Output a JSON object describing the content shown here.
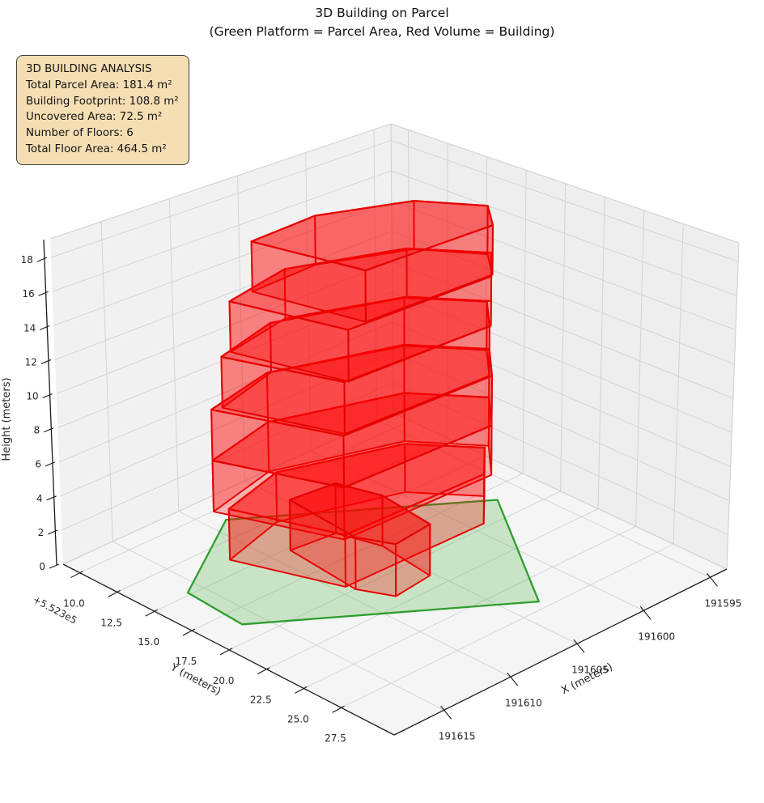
{
  "title": {
    "line1": "3D Building on Parcel",
    "line2": "(Green Platform = Parcel Area, Red Volume = Building)"
  },
  "info_box": {
    "lines": [
      "3D BUILDING ANALYSIS",
      "Total Parcel Area: 181.4 m²",
      "Building Footprint: 108.8 m²",
      "Uncovered Area: 72.5 m²",
      "Number of Floors: 6",
      "Total Floor Area: 464.5 m²"
    ]
  },
  "axes": {
    "x": {
      "label": "X (meters)",
      "ticks": [
        "191615",
        "191610",
        "191605",
        "191600",
        "191595"
      ]
    },
    "y": {
      "label": "Y (meters)",
      "offset_text": "+5.523e5",
      "ticks": [
        "10.0",
        "12.5",
        "15.0",
        "17.5",
        "20.0",
        "22.5",
        "25.0",
        "27.5"
      ]
    },
    "z": {
      "label": "Height (meters)",
      "ticks": [
        "0",
        "2",
        "4",
        "6",
        "8",
        "10",
        "12",
        "14",
        "16",
        "18"
      ]
    }
  },
  "colors": {
    "pane_left": "#f1f1f1",
    "pane_right": "#eeeeee",
    "pane_floor": "#f5f5f5",
    "grid": "#d3d3d3",
    "pane_edge": "#d0d0d0",
    "spine": "#1a1a1a",
    "tick_text": "#262626",
    "parcel_fill": "rgba(80,180,70,0.27)",
    "parcel_stroke": "#2e9e2e",
    "building_side_fill": "rgba(255,0,0,0.27)",
    "building_top_fill": "rgba(255,0,0,0.42)",
    "building_stroke": "#e60000",
    "info_bg": "#f5deb3"
  },
  "chart_data": {
    "type": "3d-building-plot",
    "title": "3D Building on Parcel",
    "subtitle": "(Green Platform = Parcel Area, Red Volume = Building)",
    "xlabel": "X (meters)",
    "ylabel": "Y (meters)",
    "zlabel": "Height (meters)",
    "x_range": [
      191593.5,
      191618.5
    ],
    "y_range": [
      552308.5,
      552331.0
    ],
    "z_range": [
      0,
      19.1
    ],
    "stats": {
      "total_parcel_area_m2": 181.4,
      "building_footprint_m2": 108.8,
      "uncovered_area_m2": 72.5,
      "number_of_floors": 6,
      "total_floor_area_m2": 464.5,
      "floor_height_m": 3.0,
      "building_top_m": 18.0
    },
    "parcel_polygon": [
      [
        191616.0,
        552314.8
      ],
      [
        191608.8,
        552311.0
      ],
      [
        191596.8,
        552318.5
      ],
      [
        191603.2,
        552326.9
      ],
      [
        191616.3,
        552318.7
      ]
    ],
    "building": {
      "floors": [
        {
          "z0": 0,
          "z1": 3,
          "footprint": [
            [
              191611.8,
              552313.9
            ],
            [
              191607.0,
              552312.8
            ],
            [
              191599.7,
              552314.9
            ],
            [
              191597.0,
              552317.8
            ],
            [
              191599.2,
              552319.7
            ],
            [
              191609.4,
              552319.5
            ]
          ]
        },
        {
          "z0": 3,
          "z1": 6,
          "footprint": [
            [
              191612.6,
              552313.6
            ],
            [
              191607.2,
              552312.5
            ],
            [
              191599.5,
              552314.7
            ],
            [
              191596.7,
              552317.8
            ],
            [
              191599.0,
              552320.0
            ],
            [
              191609.8,
              552319.8
            ]
          ]
        },
        {
          "z0": 6,
          "z1": 9,
          "footprint": [
            [
              191612.6,
              552313.6
            ],
            [
              191607.2,
              552312.5
            ],
            [
              191599.5,
              552314.7
            ],
            [
              191596.7,
              552317.8
            ],
            [
              191599.0,
              552320.0
            ],
            [
              191609.8,
              552319.8
            ]
          ]
        },
        {
          "z0": 9,
          "z1": 12,
          "footprint": [
            [
              191612.0,
              552313.8
            ],
            [
              191607.0,
              552312.6
            ],
            [
              191599.6,
              552314.8
            ],
            [
              191596.9,
              552317.8
            ],
            [
              191599.1,
              552319.9
            ],
            [
              191609.6,
              552319.7
            ]
          ]
        },
        {
          "z0": 12,
          "z1": 15,
          "footprint": [
            [
              191611.2,
              552313.7
            ],
            [
              191606.0,
              552312.7
            ],
            [
              191599.4,
              552314.8
            ],
            [
              191596.7,
              552317.9
            ],
            [
              191599.0,
              552319.9
            ],
            [
              191609.4,
              552319.8
            ]
          ]
        },
        {
          "z0": 15,
          "z1": 18,
          "footprint": [
            [
              191609.4,
              552313.6
            ],
            [
              191604.4,
              552313.3
            ],
            [
              191599.2,
              552315.1
            ],
            [
              191597.0,
              552317.9
            ],
            [
              191598.8,
              552319.8
            ],
            [
              191608.0,
              552319.7
            ]
          ]
        }
      ],
      "annex": {
        "z0": 0,
        "z1": 3,
        "footprint": [
          [
            191608.7,
            552315.2
          ],
          [
            191605.6,
            552315.5
          ],
          [
            191604.8,
            552317.9
          ],
          [
            191605.3,
            552321.5
          ],
          [
            191608.2,
            552321.8
          ],
          [
            191609.2,
            552320.0
          ]
        ]
      }
    }
  }
}
